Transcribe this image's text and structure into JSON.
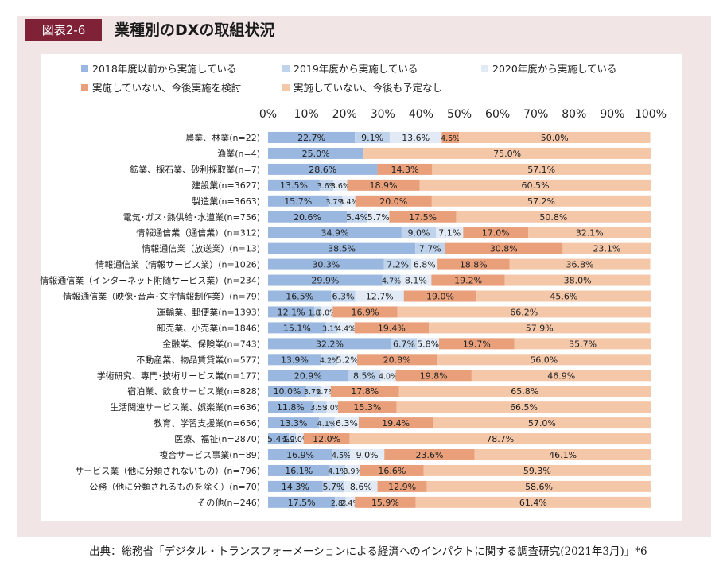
{
  "header": {
    "badge": "図表2-6",
    "title": "業種別のDXの取組状況"
  },
  "source": "出典：総務省「デジタル・トランスフォーメーションによる経済へのインパクトに関する調査研究(2021年3月)」*6",
  "colors": [
    "#9ab8df",
    "#bfd4ec",
    "#e1eaf5",
    "#e9a07a",
    "#f4c7a9"
  ],
  "chart_data": {
    "type": "bar",
    "orientation": "horizontal",
    "stacked": true,
    "percent": true,
    "xlim": [
      0,
      100
    ],
    "x_ticks": [
      "0%",
      "10%",
      "20%",
      "30%",
      "40%",
      "50%",
      "60%",
      "70%",
      "80%",
      "90%",
      "100%"
    ],
    "legend_position": "top",
    "series_names": [
      "2018年度以前から実施している",
      "2019年度から実施している",
      "2020年度から実施している",
      "実施していない、今後実施を検討",
      "実施していない、今後も予定なし"
    ],
    "categories": [
      "農業、林業(n=22)",
      "漁業(n=4)",
      "鉱業、採石業、砂利採取業(n=7)",
      "建設業(n=3627)",
      "製造業(n=3663)",
      "電気･ガス･熱供給･水道業(n=756)",
      "情報通信業（通信業）(n=312)",
      "情報通信業（放送業）(n=13)",
      "情報通信業（情報サービス業）(n=1026)",
      "情報通信業（インターネット附随サービス業）(n=234)",
      "情報通信業（映像･音声･文字情報制作業）(n=79)",
      "運輸業、郵便業(n=1393)",
      "卸売業、小売業(n=1846)",
      "金融業、保険業(n=743)",
      "不動産業、物品賃貸業(n=577)",
      "学術研究、専門･技術サービス業(n=177)",
      "宿泊業、飲食サービス業(n=828)",
      "生活関連サービス業、娯楽業(n=636)",
      "教育、学習支援業(n=656)",
      "医療、福祉(n=2870)",
      "複合サービス事業(n=89)",
      "サービス業（他に分類されないもの）(n=796)",
      "公務（他に分類されるものを除く）(n=70)",
      "その他(n=246)"
    ],
    "rows": [
      [
        22.7,
        9.1,
        13.6,
        4.5,
        50.0
      ],
      [
        25.0,
        0,
        0,
        0,
        75.0
      ],
      [
        28.6,
        0,
        0,
        14.3,
        57.1
      ],
      [
        13.5,
        3.6,
        3.6,
        18.9,
        60.5
      ],
      [
        15.7,
        3.7,
        3.4,
        20.0,
        57.2
      ],
      [
        20.6,
        5.4,
        5.7,
        17.5,
        50.8
      ],
      [
        34.9,
        9.0,
        7.1,
        17.0,
        32.1
      ],
      [
        38.5,
        7.7,
        0,
        30.8,
        23.1
      ],
      [
        30.3,
        7.2,
        6.8,
        18.8,
        36.8
      ],
      [
        29.9,
        4.7,
        8.1,
        19.2,
        38.0
      ],
      [
        16.5,
        6.3,
        12.7,
        19.0,
        45.6
      ],
      [
        12.1,
        1.8,
        3.0,
        16.9,
        66.2
      ],
      [
        15.1,
        3.1,
        4.4,
        19.4,
        57.9
      ],
      [
        32.2,
        6.7,
        5.8,
        19.7,
        35.7
      ],
      [
        13.9,
        4.2,
        5.2,
        20.8,
        56.0
      ],
      [
        20.9,
        8.5,
        4.0,
        19.8,
        46.9
      ],
      [
        10.0,
        3.7,
        2.7,
        17.8,
        65.8
      ],
      [
        11.8,
        3.5,
        3.0,
        15.3,
        66.5
      ],
      [
        13.3,
        4.1,
        6.3,
        19.4,
        57.0
      ],
      [
        5.4,
        1.9,
        2.0,
        12.0,
        78.7
      ],
      [
        16.9,
        4.5,
        9.0,
        23.6,
        46.1
      ],
      [
        16.1,
        4.1,
        3.9,
        16.6,
        59.3
      ],
      [
        14.3,
        5.7,
        8.6,
        12.9,
        58.6
      ],
      [
        17.5,
        2.8,
        2.4,
        15.9,
        61.4
      ]
    ]
  }
}
